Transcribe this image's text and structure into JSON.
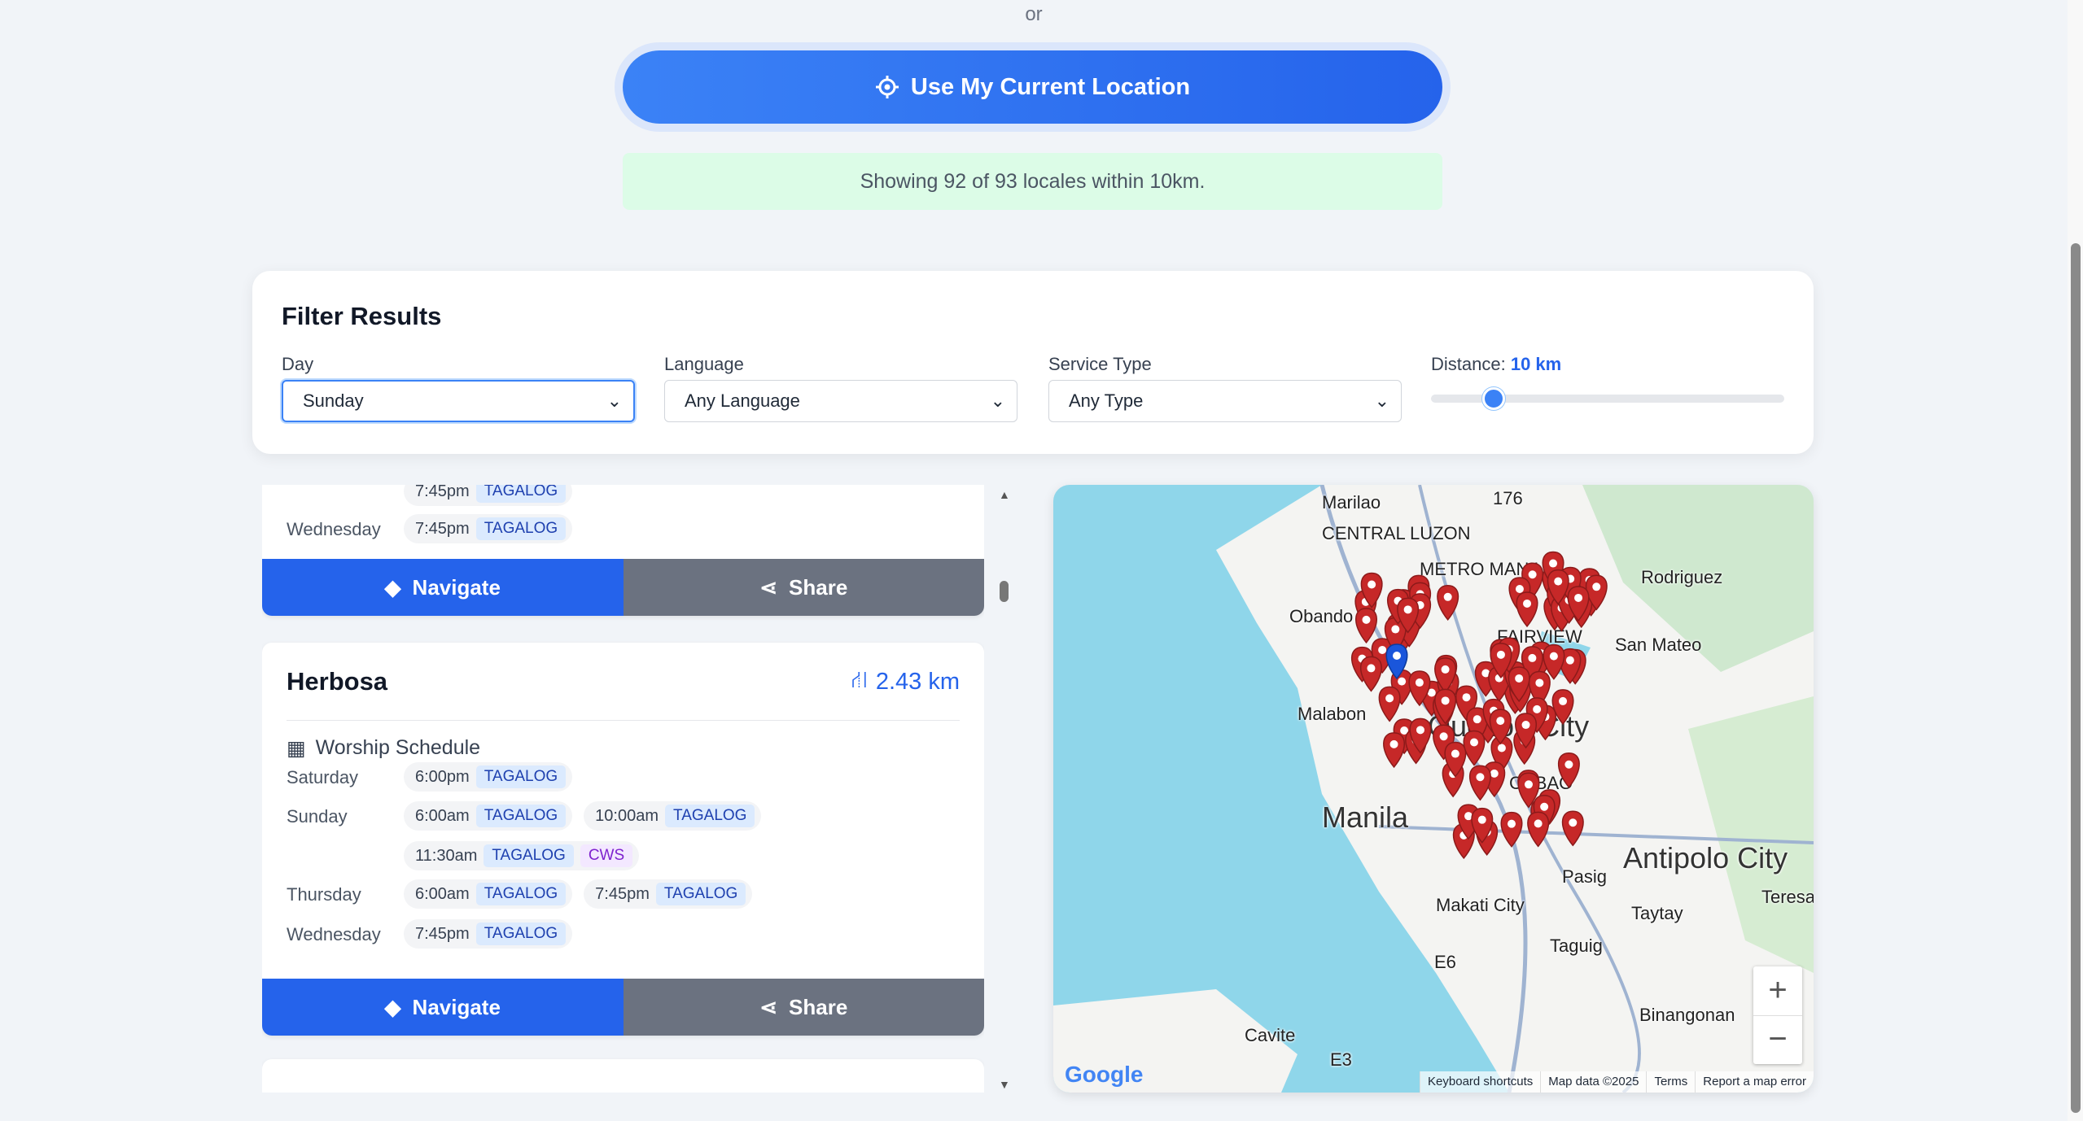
{
  "or_text": "or",
  "location_button": {
    "label": "Use My Current Location",
    "icon": "crosshairs-icon"
  },
  "status": "Showing 92 of 93 locales within 10km.",
  "filter": {
    "title": "Filter Results",
    "day": {
      "label": "Day",
      "value": "Sunday"
    },
    "language": {
      "label": "Language",
      "value": "Any Language"
    },
    "service_type": {
      "label": "Service Type",
      "value": "Any Type"
    },
    "distance": {
      "label": "Distance:",
      "value": "10 km",
      "level_km": 10,
      "max_km": 100
    }
  },
  "colors": {
    "accent": "#2563eb",
    "share": "#6b7280",
    "pin": "#c62828"
  },
  "cards": [
    {
      "name": "",
      "distance": "",
      "schedule": [
        {
          "day": "",
          "slots": [
            {
              "time": "7:45pm",
              "tags": [
                "TAGALOG"
              ]
            }
          ]
        },
        {
          "day": "Wednesday",
          "slots": [
            {
              "time": "7:45pm",
              "tags": [
                "TAGALOG"
              ]
            }
          ]
        }
      ]
    },
    {
      "name": "Herbosa",
      "distance": "2.43 km",
      "schedule_title": "Worship Schedule",
      "schedule": [
        {
          "day": "Saturday",
          "slots": [
            {
              "time": "6:00pm",
              "tags": [
                "TAGALOG"
              ]
            }
          ]
        },
        {
          "day": "Sunday",
          "slots": [
            {
              "time": "6:00am",
              "tags": [
                "TAGALOG"
              ]
            },
            {
              "time": "10:00am",
              "tags": [
                "TAGALOG"
              ]
            }
          ]
        },
        {
          "day": "",
          "slots": [
            {
              "time": "11:30am",
              "tags": [
                "TAGALOG",
                "CWS"
              ]
            }
          ]
        },
        {
          "day": "Thursday",
          "slots": [
            {
              "time": "6:00am",
              "tags": [
                "TAGALOG"
              ]
            },
            {
              "time": "7:45pm",
              "tags": [
                "TAGALOG"
              ]
            }
          ]
        },
        {
          "day": "Wednesday",
          "slots": [
            {
              "time": "7:45pm",
              "tags": [
                "TAGALOG"
              ]
            }
          ]
        }
      ]
    }
  ],
  "buttons": {
    "navigate": "Navigate",
    "share": "Share"
  },
  "map": {
    "labels": [
      "Marilao",
      "CENTRAL LUZON",
      "METRO MANILA",
      "176",
      "Rodriguez",
      "Obando",
      "FAIRVIEW",
      "San Mateo",
      "Malabon",
      "Quezon City",
      "CUBAO",
      "Manila",
      "Antipolo City",
      "Teresa",
      "Pasig",
      "Makati City",
      "Taytay",
      "Taguig",
      "Cavite",
      "Binangonan",
      "E6",
      "E3"
    ],
    "google": "Google",
    "attribution": [
      "Keyboard shortcuts",
      "Map data ©2025",
      "Terms",
      "Report a map error"
    ],
    "zoom_in": "+",
    "zoom_out": "−"
  }
}
